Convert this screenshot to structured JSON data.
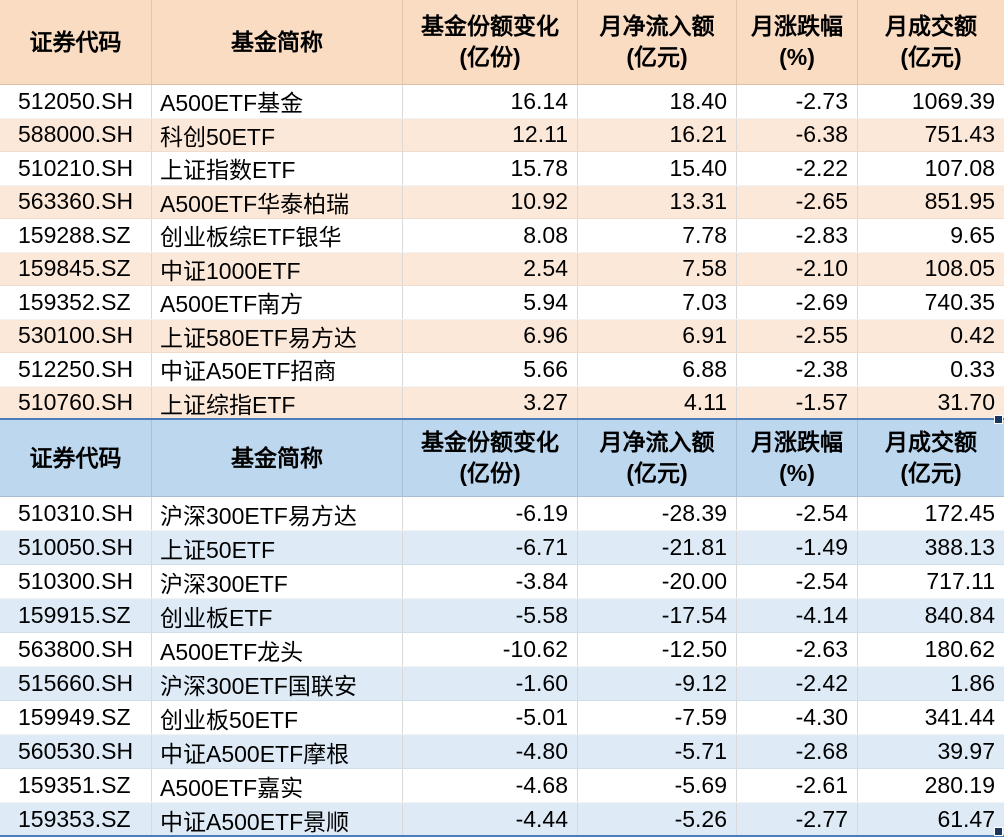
{
  "columns": [
    {
      "key": "code",
      "label": "证券代码",
      "unit": ""
    },
    {
      "key": "name",
      "label": "基金简称",
      "unit": ""
    },
    {
      "key": "share_change",
      "label": "基金份额变化",
      "unit": "(亿份)"
    },
    {
      "key": "net_inflow",
      "label": "月净流入额",
      "unit": "(亿元)"
    },
    {
      "key": "pct_change",
      "label": "月涨跌幅",
      "unit": "(%)"
    },
    {
      "key": "turnover",
      "label": "月成交额",
      "unit": "(亿元)"
    }
  ],
  "tables": [
    {
      "theme": {
        "header_bg": "#FADCC3",
        "stripe_bg": "#FCE8D9",
        "row_bg": "#FFFFFF",
        "selection_color": "#4A7EBB",
        "handle_color": "#17375E"
      },
      "rows": [
        [
          "512050.SH",
          "A500ETF基金",
          "16.14",
          "18.40",
          "-2.73",
          "1069.39"
        ],
        [
          "588000.SH",
          "科创50ETF",
          "12.11",
          "16.21",
          "-6.38",
          "751.43"
        ],
        [
          "510210.SH",
          "上证指数ETF",
          "15.78",
          "15.40",
          "-2.22",
          "107.08"
        ],
        [
          "563360.SH",
          "A500ETF华泰柏瑞",
          "10.92",
          "13.31",
          "-2.65",
          "851.95"
        ],
        [
          "159288.SZ",
          "创业板综ETF银华",
          "8.08",
          "7.78",
          "-2.83",
          "9.65"
        ],
        [
          "159845.SZ",
          "中证1000ETF",
          "2.54",
          "7.58",
          "-2.10",
          "108.05"
        ],
        [
          "159352.SZ",
          "A500ETF南方",
          "5.94",
          "7.03",
          "-2.69",
          "740.35"
        ],
        [
          "530100.SH",
          "上证580ETF易方达",
          "6.96",
          "6.91",
          "-2.55",
          "0.42"
        ],
        [
          "512250.SH",
          "中证A50ETF招商",
          "5.66",
          "6.88",
          "-2.38",
          "0.33"
        ],
        [
          "510760.SH",
          "上证综指ETF",
          "3.27",
          "4.11",
          "-1.57",
          "31.70"
        ]
      ]
    },
    {
      "theme": {
        "header_bg": "#BDD7EE",
        "stripe_bg": "#DEEBF7",
        "row_bg": "#FFFFFF",
        "selection_color": "#4A7EBB",
        "handle_color": "#17375E"
      },
      "rows": [
        [
          "510310.SH",
          "沪深300ETF易方达",
          "-6.19",
          "-28.39",
          "-2.54",
          "172.45"
        ],
        [
          "510050.SH",
          "上证50ETF",
          "-6.71",
          "-21.81",
          "-1.49",
          "388.13"
        ],
        [
          "510300.SH",
          "沪深300ETF",
          "-3.84",
          "-20.00",
          "-2.54",
          "717.11"
        ],
        [
          "159915.SZ",
          "创业板ETF",
          "-5.58",
          "-17.54",
          "-4.14",
          "840.84"
        ],
        [
          "563800.SH",
          "A500ETF龙头",
          "-10.62",
          "-12.50",
          "-2.63",
          "180.62"
        ],
        [
          "515660.SH",
          "沪深300ETF国联安",
          "-1.60",
          "-9.12",
          "-2.42",
          "1.86"
        ],
        [
          "159949.SZ",
          "创业板50ETF",
          "-5.01",
          "-7.59",
          "-4.30",
          "341.44"
        ],
        [
          "560530.SH",
          "中证A500ETF摩根",
          "-4.80",
          "-5.71",
          "-2.68",
          "39.97"
        ],
        [
          "159351.SZ",
          "A500ETF嘉实",
          "-4.68",
          "-5.69",
          "-2.61",
          "280.19"
        ],
        [
          "159353.SZ",
          "中证A500ETF景顺",
          "-4.44",
          "-5.26",
          "-2.77",
          "61.47"
        ]
      ]
    }
  ]
}
